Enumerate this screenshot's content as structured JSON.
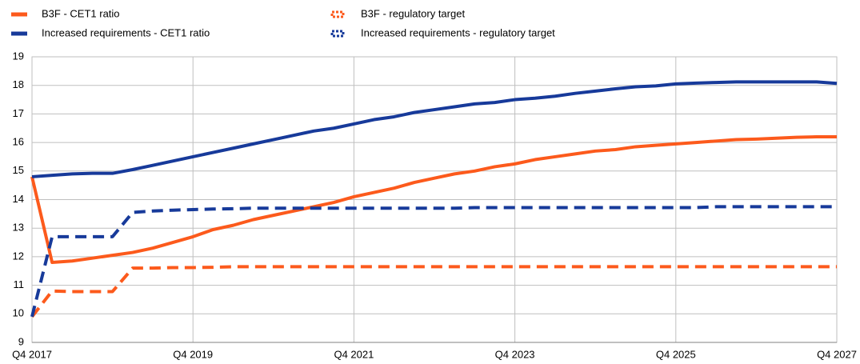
{
  "chart_data": {
    "type": "line",
    "categories": [
      "Q4 2017",
      null,
      null,
      null,
      null,
      null,
      null,
      null,
      "Q4 2019",
      null,
      null,
      null,
      null,
      null,
      null,
      null,
      "Q4 2021",
      null,
      null,
      null,
      null,
      null,
      null,
      null,
      "Q4 2023",
      null,
      null,
      null,
      null,
      null,
      null,
      null,
      "Q4 2025",
      null,
      null,
      null,
      null,
      null,
      null,
      null,
      "Q4 2027"
    ],
    "ylim": [
      9,
      19
    ],
    "yticks": [
      9,
      10,
      11,
      12,
      13,
      14,
      15,
      16,
      17,
      18,
      19
    ],
    "grid": true,
    "series": [
      {
        "name": "B3F - CET1 ratio",
        "color": "#fc5a1c",
        "dashed": false,
        "values": [
          14.8,
          11.8,
          11.85,
          11.95,
          12.05,
          12.15,
          12.3,
          12.5,
          12.7,
          12.95,
          13.1,
          13.3,
          13.45,
          13.6,
          13.75,
          13.9,
          14.1,
          14.25,
          14.4,
          14.6,
          14.75,
          14.9,
          15.0,
          15.15,
          15.25,
          15.4,
          15.5,
          15.6,
          15.7,
          15.75,
          15.85,
          15.9,
          15.95,
          16.0,
          16.05,
          16.1,
          16.12,
          16.15,
          16.18,
          16.2,
          16.2
        ]
      },
      {
        "name": "B3F - regulatory target",
        "color": "#fc5a1c",
        "dashed": true,
        "values": [
          9.9,
          10.8,
          10.78,
          10.78,
          10.78,
          11.6,
          11.6,
          11.62,
          11.62,
          11.63,
          11.65,
          11.65,
          11.65,
          11.65,
          11.65,
          11.65,
          11.65,
          11.65,
          11.65,
          11.65,
          11.65,
          11.65,
          11.65,
          11.65,
          11.65,
          11.65,
          11.65,
          11.65,
          11.65,
          11.65,
          11.65,
          11.65,
          11.65,
          11.65,
          11.65,
          11.65,
          11.65,
          11.65,
          11.65,
          11.65,
          11.65
        ]
      },
      {
        "name": "Increased requirements - CET1 ratio",
        "color": "#173a9a",
        "dashed": false,
        "values": [
          14.8,
          14.85,
          14.9,
          14.92,
          14.92,
          15.05,
          15.2,
          15.35,
          15.5,
          15.65,
          15.8,
          15.95,
          16.1,
          16.25,
          16.4,
          16.5,
          16.65,
          16.8,
          16.9,
          17.05,
          17.15,
          17.25,
          17.35,
          17.4,
          17.5,
          17.55,
          17.62,
          17.72,
          17.8,
          17.88,
          17.95,
          17.98,
          18.05,
          18.08,
          18.1,
          18.12,
          18.12,
          18.12,
          18.12,
          18.12,
          18.07
        ]
      },
      {
        "name": "Increased requirements - regulatory target",
        "color": "#173a9a",
        "dashed": true,
        "values": [
          9.9,
          12.7,
          12.7,
          12.7,
          12.7,
          13.55,
          13.6,
          13.63,
          13.65,
          13.67,
          13.68,
          13.7,
          13.7,
          13.7,
          13.7,
          13.7,
          13.7,
          13.7,
          13.7,
          13.7,
          13.7,
          13.7,
          13.72,
          13.72,
          13.72,
          13.72,
          13.72,
          13.72,
          13.72,
          13.72,
          13.72,
          13.72,
          13.72,
          13.72,
          13.75,
          13.75,
          13.75,
          13.75,
          13.75,
          13.75,
          13.75
        ]
      }
    ]
  }
}
